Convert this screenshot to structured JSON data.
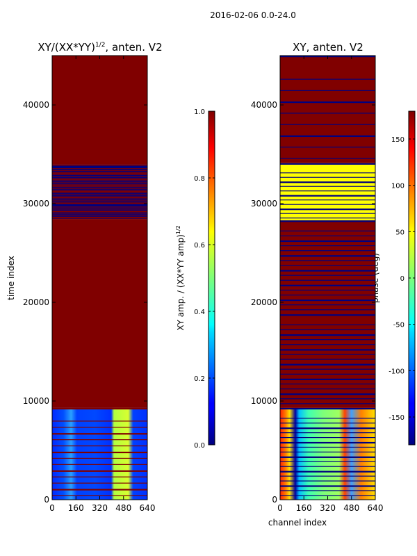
{
  "chart_data": {
    "suptitle": "2016-02-06 0.0-24.0",
    "colormap": "jet",
    "panels": [
      {
        "id": "amplitude",
        "type": "heatmap",
        "title_main": "XY/(XX*YY)",
        "title_exp": "1/2",
        "title_tail": ", anten. V2",
        "ylabel": "time index",
        "xlabel": "",
        "xlim": [
          0,
          640
        ],
        "ylim": [
          0,
          45000
        ],
        "xticks": [
          "0",
          "160",
          "320",
          "480",
          "640"
        ],
        "yticks": [
          "0",
          "10000",
          "20000",
          "30000",
          "40000"
        ],
        "colorbar_label_main": "XY amp. / (XX*YY amp)",
        "colorbar_label_exp": "1/2",
        "colorbar_range": [
          0,
          1
        ],
        "colorbar_ticks": [
          "0.0",
          "0.2",
          "0.4",
          "0.6",
          "0.8",
          "1.0"
        ],
        "regions": [
          {
            "t0": 34000,
            "t1": 45000,
            "value": 1.0
          },
          {
            "t0": 28400,
            "t1": 34000,
            "value": 0.0,
            "stripes_value": 1.0,
            "stripes": 26
          },
          {
            "t0": 9300,
            "t1": 28400,
            "value": 1.0
          },
          {
            "t0": 0,
            "t1": 9300,
            "value": 0.15,
            "stripes_value": 1.0,
            "stripes": 14
          }
        ]
      },
      {
        "id": "phase",
        "type": "heatmap",
        "title_main": "XY, anten. V2",
        "ylabel": "",
        "xlabel": "channel index",
        "xlim": [
          0,
          640
        ],
        "ylim": [
          0,
          45000
        ],
        "xticks": [
          "0",
          "160",
          "320",
          "480",
          "640"
        ],
        "yticks": [
          "0",
          "10000",
          "20000",
          "30000",
          "40000"
        ],
        "colorbar_label": "phase (deg)",
        "colorbar_range": [
          -180,
          180
        ],
        "colorbar_ticks": [
          "-150",
          "-100",
          "-50",
          "0",
          "50",
          "100",
          "150"
        ],
        "regions": [
          {
            "t0": 34100,
            "t1": 45000,
            "value": 180,
            "stripes_value": -180,
            "stripes": 9
          },
          {
            "t0": 28300,
            "t1": 34100,
            "value": 45,
            "stripes_value": -180,
            "stripes": 12
          },
          {
            "t0": 9300,
            "t1": 28300,
            "value": 180,
            "stripes_value": -180,
            "stripes": 36
          },
          {
            "t0": 0,
            "t1": 9300,
            "value": 20,
            "stripes_value": -180,
            "stripes": 18
          }
        ]
      }
    ]
  }
}
